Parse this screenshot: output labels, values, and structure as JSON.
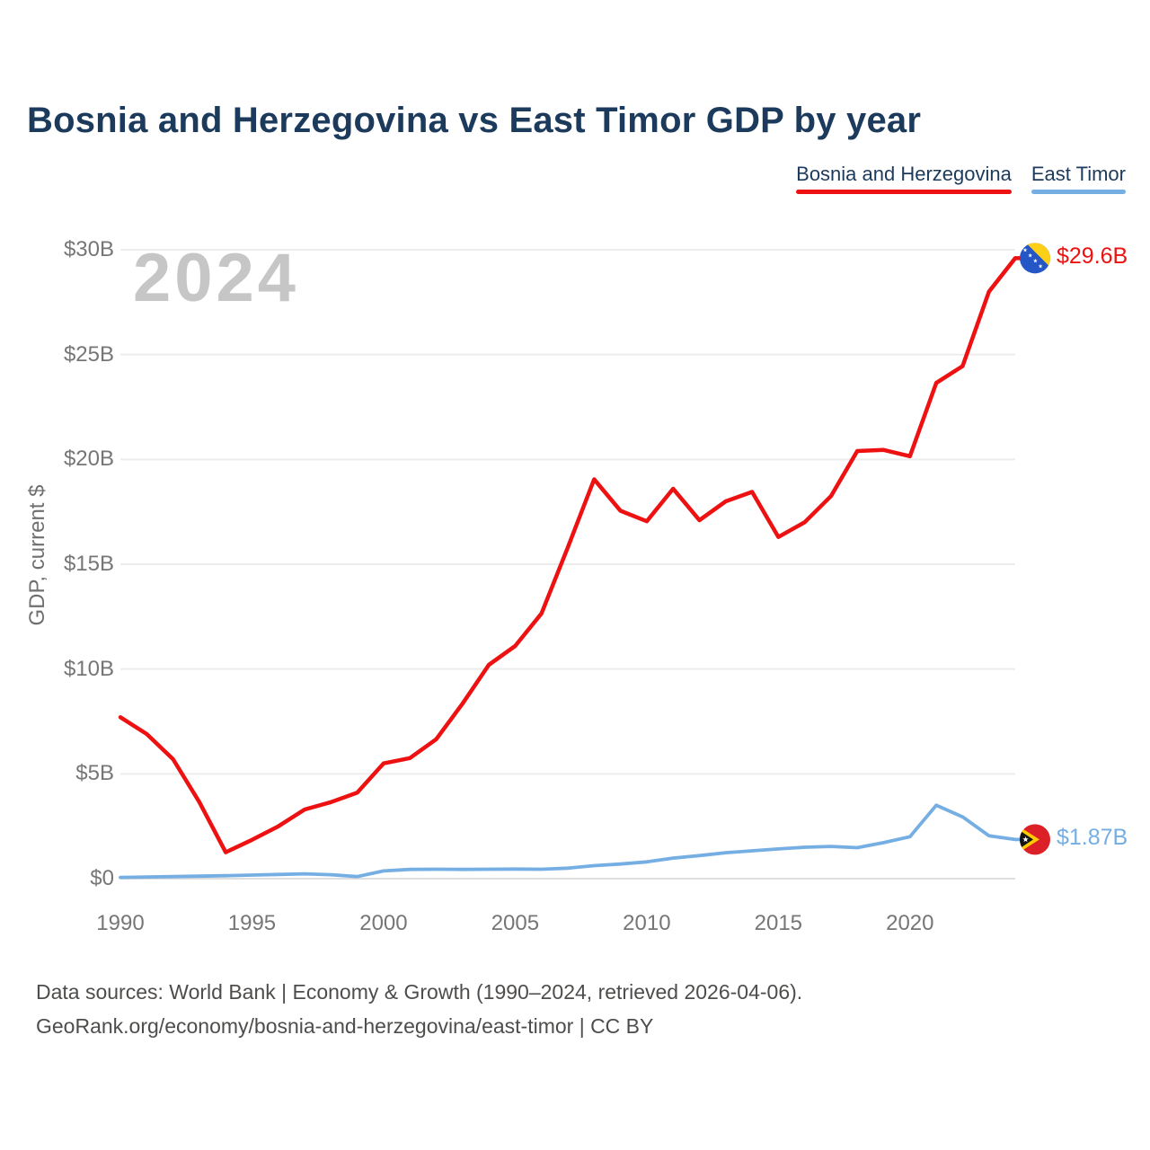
{
  "page": {
    "title": "Bosnia and Herzegovina vs East Timor GDP by year",
    "watermark_year": "2024"
  },
  "legend": {
    "items": [
      {
        "label": "Bosnia and Herzegovina",
        "slug": "bosnia-and-herzegovina",
        "color": "#ee1111"
      },
      {
        "label": "East Timor",
        "slug": "east-timor",
        "color": "#75aee3"
      }
    ]
  },
  "axes": {
    "y_title": "GDP, current $",
    "y_ticks": [
      {
        "label": "$0",
        "value": 0
      },
      {
        "label": "$5B",
        "value": 5
      },
      {
        "label": "$10B",
        "value": 10
      },
      {
        "label": "$15B",
        "value": 15
      },
      {
        "label": "$20B",
        "value": 20
      },
      {
        "label": "$25B",
        "value": 25
      },
      {
        "label": "$30B",
        "value": 30
      }
    ],
    "x_ticks": [
      {
        "label": "1990",
        "value": 1990
      },
      {
        "label": "1995",
        "value": 1995
      },
      {
        "label": "2000",
        "value": 2000
      },
      {
        "label": "2005",
        "value": 2005
      },
      {
        "label": "2010",
        "value": 2010
      },
      {
        "label": "2015",
        "value": 2015
      },
      {
        "label": "2020",
        "value": 2020
      }
    ]
  },
  "footer": {
    "sources_line": "Data sources: World Bank | Economy & Growth (1990–2024, retrieved 2026-04-06).",
    "attribution_line": "GeoRank.org/economy/bosnia-and-herzegovina/east-timor | CC BY"
  },
  "chart_data": {
    "type": "line",
    "title": "Bosnia and Herzegovina vs East Timor GDP by year",
    "xlabel": "",
    "ylabel": "GDP, current $",
    "x_range": [
      1990,
      2024
    ],
    "ylim": [
      0,
      30
    ],
    "grid": "horizontal",
    "legend_position": "top-right",
    "units": "billions of current US$",
    "x": [
      1990,
      1991,
      1992,
      1993,
      1994,
      1995,
      1996,
      1997,
      1998,
      1999,
      2000,
      2001,
      2002,
      2003,
      2004,
      2005,
      2006,
      2007,
      2008,
      2009,
      2010,
      2011,
      2012,
      2013,
      2014,
      2015,
      2016,
      2017,
      2018,
      2019,
      2020,
      2021,
      2022,
      2023,
      2024
    ],
    "series": [
      {
        "name": "Bosnia and Herzegovina",
        "slug": "bosnia-and-herzegovina",
        "color": "#ee1111",
        "flag_icon": "bosnia-and-herzegovina-flag-icon",
        "end_label": "$29.6B",
        "end_value_billion": 29.6,
        "values": [
          7.7,
          6.9,
          5.7,
          3.65,
          1.26,
          1.85,
          2.5,
          3.3,
          3.65,
          4.1,
          5.5,
          5.75,
          6.65,
          8.35,
          10.2,
          11.1,
          12.65,
          15.8,
          19.05,
          17.55,
          17.05,
          18.6,
          17.1,
          18.0,
          18.45,
          16.3,
          17.0,
          18.25,
          20.4,
          20.45,
          20.15,
          23.65,
          24.45,
          28.0,
          29.6
        ]
      },
      {
        "name": "East Timor",
        "slug": "east-timor",
        "color": "#75aee3",
        "flag_icon": "east-timor-flag-icon",
        "end_label": "$1.87B",
        "end_value_billion": 1.87,
        "values": [
          0.06,
          0.08,
          0.1,
          0.12,
          0.14,
          0.17,
          0.2,
          0.23,
          0.19,
          0.1,
          0.37,
          0.44,
          0.45,
          0.44,
          0.45,
          0.46,
          0.45,
          0.5,
          0.62,
          0.7,
          0.8,
          0.98,
          1.1,
          1.24,
          1.33,
          1.42,
          1.5,
          1.54,
          1.48,
          1.72,
          2.0,
          3.5,
          2.95,
          2.05,
          1.87
        ]
      }
    ]
  }
}
